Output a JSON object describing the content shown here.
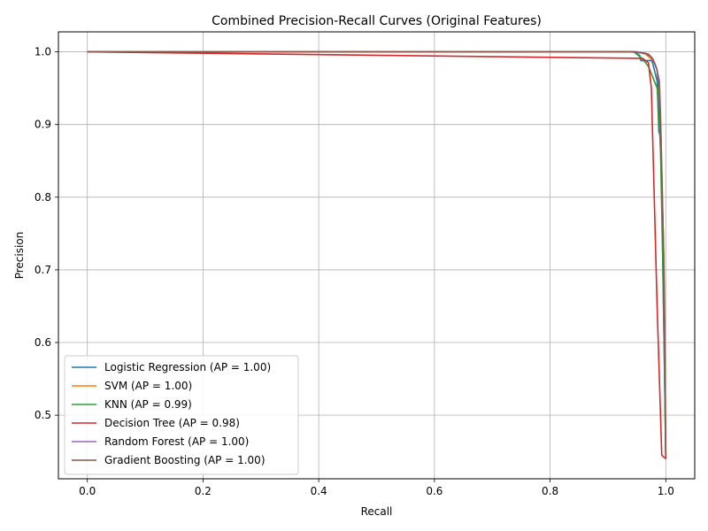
{
  "chart_data": {
    "type": "line",
    "title": "Combined Precision-Recall Curves (Original Features)",
    "xlabel": "Recall",
    "ylabel": "Precision",
    "xlim": [
      -0.05,
      1.05
    ],
    "ylim": [
      0.4125,
      1.0275
    ],
    "xticks": [
      0.0,
      0.2,
      0.4,
      0.6,
      0.8,
      1.0
    ],
    "xtick_labels": [
      "0.0",
      "0.2",
      "0.4",
      "0.6",
      "0.8",
      "1.0"
    ],
    "yticks": [
      0.5,
      0.6,
      0.7,
      0.8,
      0.9,
      1.0
    ],
    "ytick_labels": [
      "0.5",
      "0.6",
      "0.7",
      "0.8",
      "0.9",
      "1.0"
    ],
    "grid": true,
    "legend_position": "lower-left",
    "series": [
      {
        "name": "Logistic Regression (AP = 1.00)",
        "color": "#1f77b4",
        "x": [
          0.0,
          0.945,
          0.955,
          0.957,
          0.975,
          0.977,
          0.985,
          0.988,
          0.99,
          0.993,
          0.995,
          0.997,
          1.0
        ],
        "y": [
          1.0,
          1.0,
          0.995,
          0.988,
          0.988,
          0.985,
          0.96,
          0.89,
          0.885,
          0.83,
          0.7,
          0.6,
          0.44
        ]
      },
      {
        "name": "SVM (AP = 1.00)",
        "color": "#ff7f0e",
        "x": [
          0.0,
          0.95,
          0.965,
          0.975,
          0.98,
          0.985,
          0.988,
          0.99,
          0.993,
          0.995,
          0.997,
          0.998,
          1.0
        ],
        "y": [
          1.0,
          1.0,
          0.997,
          0.99,
          0.985,
          0.975,
          0.95,
          0.9,
          0.8,
          0.77,
          0.7,
          0.64,
          0.44
        ]
      },
      {
        "name": "KNN (AP = 0.99)",
        "color": "#2ca02c",
        "x": [
          0.0,
          0.945,
          0.96,
          0.97,
          0.975,
          0.98,
          0.985,
          0.988,
          0.991,
          0.993,
          0.995,
          0.997,
          1.0
        ],
        "y": [
          1.0,
          1.0,
          0.99,
          0.98,
          0.97,
          0.96,
          0.95,
          0.92,
          0.86,
          0.78,
          0.7,
          0.6,
          0.44
        ]
      },
      {
        "name": "Decision Tree (AP = 0.98)",
        "color": "#d62728",
        "x": [
          0.0,
          0.96,
          0.97,
          0.975,
          0.985,
          0.993,
          1.0
        ],
        "y": [
          1.0,
          0.991,
          0.985,
          0.95,
          0.65,
          0.445,
          0.44
        ]
      },
      {
        "name": "Random Forest (AP = 1.00)",
        "color": "#9467bd",
        "x": [
          0.0,
          0.95,
          0.97,
          0.978,
          0.983,
          0.986,
          0.989,
          0.991,
          0.993,
          0.995,
          0.997,
          0.998,
          1.0
        ],
        "y": [
          1.0,
          1.0,
          0.997,
          0.99,
          0.98,
          0.97,
          0.96,
          0.91,
          0.84,
          0.77,
          0.69,
          0.58,
          0.44
        ]
      },
      {
        "name": "Gradient Boosting (AP = 1.00)",
        "color": "#8c564b",
        "x": [
          0.0,
          0.94,
          0.965,
          0.975,
          0.98,
          0.985,
          0.988,
          0.991,
          0.994,
          0.996,
          0.998,
          1.0
        ],
        "y": [
          1.0,
          1.0,
          0.998,
          0.993,
          0.985,
          0.975,
          0.95,
          0.9,
          0.8,
          0.73,
          0.62,
          0.44
        ]
      }
    ]
  }
}
